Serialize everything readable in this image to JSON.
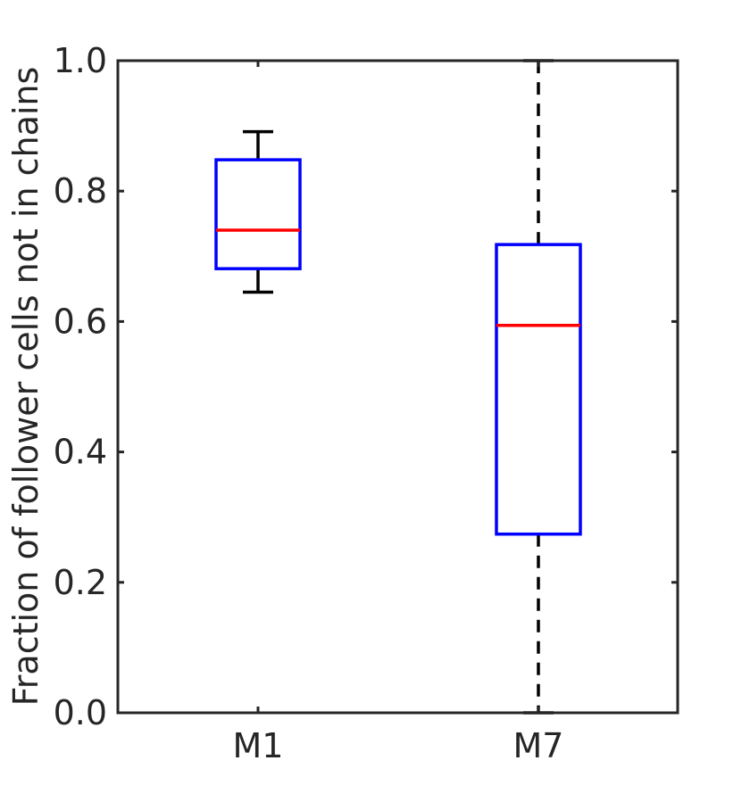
{
  "chart_data": {
    "type": "box",
    "title": "",
    "xlabel": "",
    "ylabel": "Fraction of follower cells not in chains",
    "categories": [
      "M1",
      "M7"
    ],
    "ylim": [
      0,
      1
    ],
    "yticks": [
      0.0,
      0.2,
      0.4,
      0.6,
      0.8,
      1.0
    ],
    "ytick_labels": [
      "0.0",
      "0.2",
      "0.4",
      "0.6",
      "0.8",
      "1.0"
    ],
    "boxes": [
      {
        "category": "M1",
        "whisker_low": 0.645,
        "q1": 0.681,
        "median": 0.74,
        "q3": 0.848,
        "whisker_high": 0.891
      },
      {
        "category": "M7",
        "whisker_low": 0.0,
        "q1": 0.274,
        "median": 0.594,
        "q3": 0.718,
        "whisker_high": 1.0
      }
    ],
    "grid": false,
    "colors": {
      "box": "#0000ff",
      "median": "#ff0000",
      "whisker": "#000000",
      "axis": "#262626"
    }
  }
}
